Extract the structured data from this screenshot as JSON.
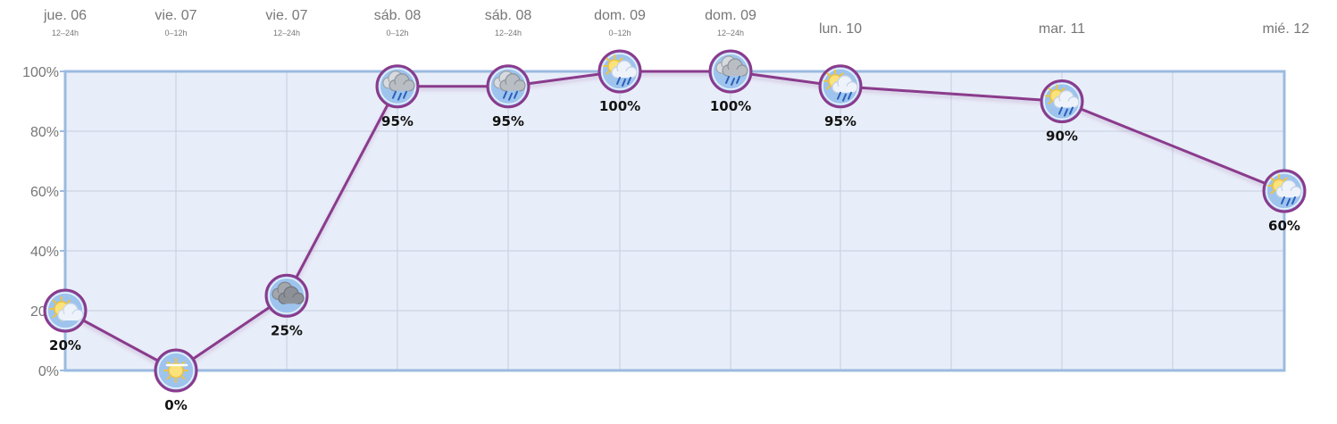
{
  "chart_data": {
    "type": "line",
    "unit": "%",
    "ylim": [
      0,
      100
    ],
    "yticks": [
      0,
      20,
      40,
      60,
      80,
      100
    ],
    "ytick_labels": [
      "0%",
      "20%",
      "40%",
      "60%",
      "80%",
      "100%"
    ],
    "grid": true,
    "colors": {
      "line": "#8a3a8c",
      "plot_bg": "#e8eef9",
      "frame": "#9bbbe0",
      "grid": "#c4cfdf",
      "icon_fill": "#9ec4ee"
    },
    "points": [
      {
        "day": "jue. 06",
        "period": "12–24h",
        "value": 20,
        "value_label": "20%",
        "icon": "sun-behind-cloud-icon"
      },
      {
        "day": "vie. 07",
        "period": "0–12h",
        "value": 0,
        "value_label": "0%",
        "icon": "sun-haze-icon"
      },
      {
        "day": "vie. 07",
        "period": "12–24h",
        "value": 25,
        "value_label": "25%",
        "icon": "overcast-clouds-icon"
      },
      {
        "day": "sáb. 08",
        "period": "0–12h",
        "value": 95,
        "value_label": "95%",
        "icon": "cloud-rain-icon"
      },
      {
        "day": "sáb. 08",
        "period": "12–24h",
        "value": 95,
        "value_label": "95%",
        "icon": "cloud-rain-icon"
      },
      {
        "day": "dom. 09",
        "period": "0–12h",
        "value": 100,
        "value_label": "100%",
        "icon": "sun-cloud-rain-icon"
      },
      {
        "day": "dom. 09",
        "period": "12–24h",
        "value": 100,
        "value_label": "100%",
        "icon": "cloud-rain-icon"
      },
      {
        "day": "lun. 10",
        "period": "",
        "value": 95,
        "value_label": "95%",
        "icon": "sun-cloud-rain-icon"
      },
      {
        "day": "mar. 11",
        "period": "",
        "value": 90,
        "value_label": "90%",
        "icon": "sun-cloud-rain-icon"
      },
      {
        "day": "mié. 12",
        "period": "",
        "value": 60,
        "value_label": "60%",
        "icon": "sun-cloud-rain-icon"
      }
    ]
  }
}
